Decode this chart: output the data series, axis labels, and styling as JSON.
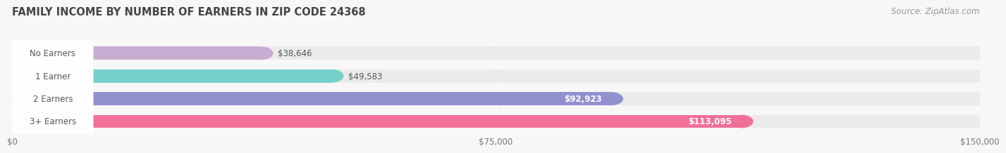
{
  "title": "FAMILY INCOME BY NUMBER OF EARNERS IN ZIP CODE 24368",
  "source": "Source: ZipAtlas.com",
  "categories": [
    "No Earners",
    "1 Earner",
    "2 Earners",
    "3+ Earners"
  ],
  "values": [
    38646,
    49583,
    92923,
    113095
  ],
  "bar_colors": [
    "#c9aed3",
    "#76d0cb",
    "#9191d0",
    "#f07098"
  ],
  "bar_bg_color": "#ebebeb",
  "value_labels": [
    "$38,646",
    "$49,583",
    "$92,923",
    "$113,095"
  ],
  "value_inside": [
    false,
    false,
    true,
    true
  ],
  "x_ticks": [
    0,
    75000,
    150000
  ],
  "x_tick_labels": [
    "$0",
    "$75,000",
    "$150,000"
  ],
  "xlim": [
    0,
    150000
  ],
  "title_fontsize": 10.5,
  "source_fontsize": 8.5,
  "label_fontsize": 8.5,
  "value_fontsize": 8.5,
  "tick_fontsize": 8.5,
  "background_color": "#f7f7f7",
  "grid_color": "#ffffff",
  "text_dark": "#555555",
  "text_white": "#ffffff"
}
